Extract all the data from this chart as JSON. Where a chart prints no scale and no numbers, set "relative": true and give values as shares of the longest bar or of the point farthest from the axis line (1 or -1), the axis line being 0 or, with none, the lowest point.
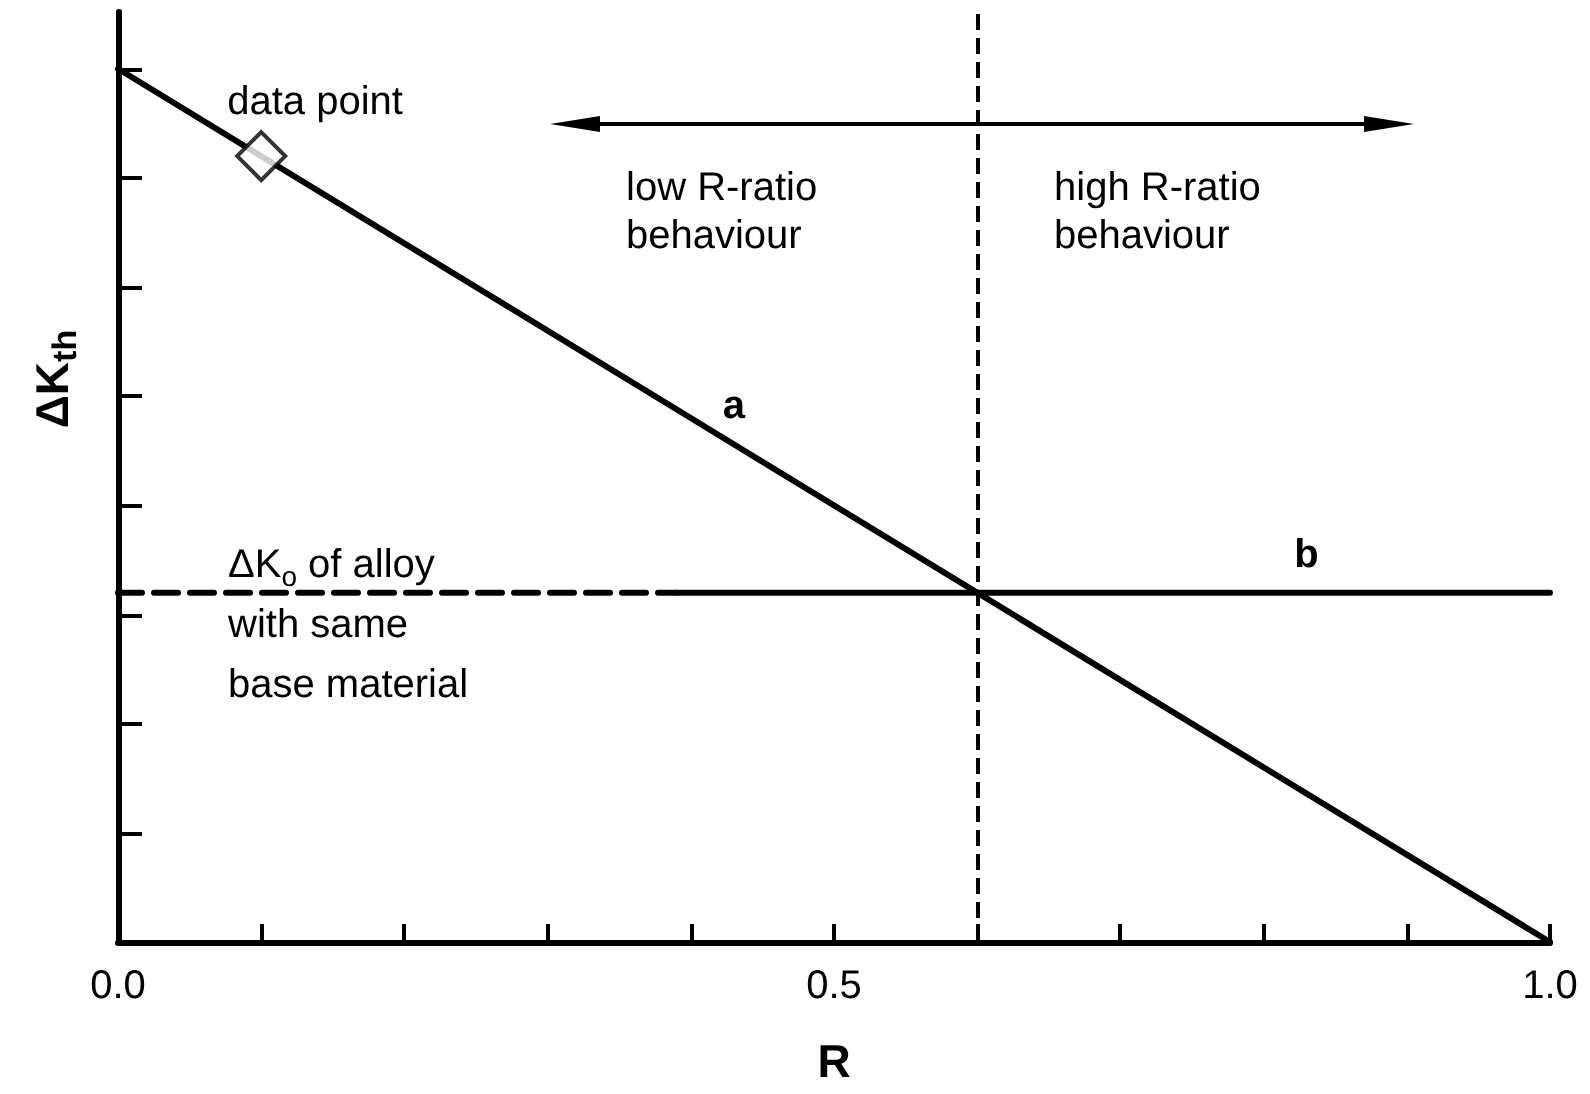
{
  "chart_data": {
    "type": "line",
    "xlabel": "R",
    "ylabel": "ΔK$_{th}$",
    "relative": true,
    "xlim": [
      0,
      1
    ],
    "xticks": [
      {
        "value": 0,
        "label": "0.0"
      },
      {
        "value": 0.1,
        "label": null
      },
      {
        "value": 0.2,
        "label": null
      },
      {
        "value": 0.3,
        "label": null
      },
      {
        "value": 0.4,
        "label": null
      },
      {
        "value": 0.5,
        "label": "0.5"
      },
      {
        "value": 0.6,
        "label": null
      },
      {
        "value": 0.7,
        "label": null
      },
      {
        "value": 0.8,
        "label": null
      },
      {
        "value": 0.9,
        "label": null
      },
      {
        "value": 1,
        "label": "1.0"
      }
    ],
    "marker": "none",
    "line_style": "solid",
    "series": [
      {
        "name": "a",
        "color": "#000000",
        "x": [
          0,
          0.43,
          1
        ],
        "values": [
          1,
          0.57,
          0
        ]
      },
      {
        "color": "#000000",
        "x": [
          0,
          0.39
        ],
        "values": [
          0.4,
          0.4
        ],
        "line_style": "dashed"
      },
      {
        "name": "b",
        "color": "#000000",
        "x": [
          0.39,
          0.83,
          1
        ],
        "values": [
          0.4,
          0.4,
          0.4
        ]
      },
      {
        "type": "scatter",
        "color": "#000000",
        "x": [
          0.1
        ],
        "values": [
          0.9
        ],
        "marker": "diamond"
      }
    ],
    "ref_lines": [
      {
        "axis": "x",
        "value": 0.6,
        "color": "#000000",
        "line_style": "dashed"
      }
    ],
    "annotations": [
      {
        "text": "data point",
        "x": 0.1,
        "y": 0.9
      },
      "low R-ratio\nbehaviour",
      "high R-ratio\nbehaviour",
      {
        "text": "ΔK$_{o}$ of alloy\nwith same\nbase material",
        "x": 0,
        "y": 0.4
      }
    ]
  }
}
